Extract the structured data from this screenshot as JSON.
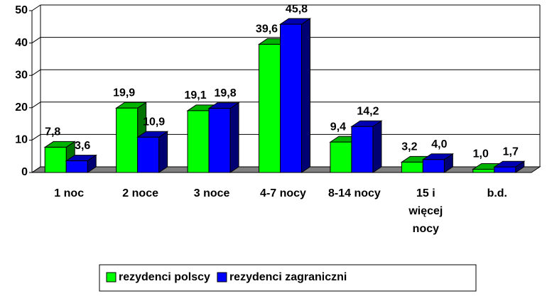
{
  "chart_data": {
    "type": "bar3d",
    "categories": [
      "1 noc",
      "2 noce",
      "3 noce",
      "4-7 nocy",
      "8-14 nocy",
      "15 i więcej nocy",
      "b.d."
    ],
    "series": [
      {
        "name": "rezydenci polscy",
        "color": "#00ff00",
        "values": [
          7.8,
          19.9,
          19.1,
          39.6,
          9.4,
          3.2,
          1.0
        ],
        "value_labels": [
          "7,8",
          "19,9",
          "19,1",
          "39,6",
          "9,4",
          "3,2",
          "1,0"
        ]
      },
      {
        "name": "rezydenci zagraniczni",
        "color": "#0000ff",
        "values": [
          3.6,
          10.9,
          19.8,
          45.8,
          14.2,
          4.0,
          1.7
        ],
        "value_labels": [
          "3,6",
          "10,9",
          "19,8",
          "45,8",
          "14,2",
          "4,0",
          "1,7"
        ]
      }
    ],
    "ylim": [
      0,
      50
    ],
    "yticks": [
      0,
      10,
      20,
      30,
      40,
      50
    ],
    "grid": true,
    "legend": "bottom"
  }
}
